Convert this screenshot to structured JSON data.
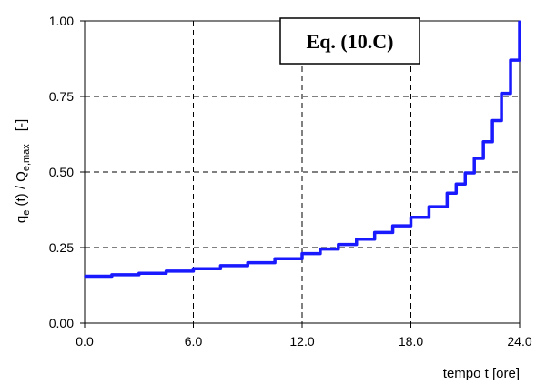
{
  "chart_data": {
    "type": "line",
    "title": "",
    "annotation": "Eq. (10.C)",
    "xlabel": "tempo t [ore]",
    "ylabel": "q",
    "ylabel_parts": {
      "q": "q",
      "q_sub": "e",
      "mid": " (t) / Q",
      "Q_sub": "e,max",
      "unit": "[-]"
    },
    "xlim": [
      0,
      24
    ],
    "ylim": [
      0,
      1
    ],
    "x_ticks": [
      "0.0",
      "6.0",
      "12.0",
      "18.0",
      "24.0"
    ],
    "y_ticks": [
      "0.00",
      "0.25",
      "0.50",
      "0.75",
      "1.00"
    ],
    "x_tick_values": [
      0,
      6,
      12,
      18,
      24
    ],
    "y_tick_values": [
      0,
      0.25,
      0.5,
      0.75,
      1.0
    ],
    "grid": true,
    "series": [
      {
        "color": "#1a1aff",
        "x": [
          0,
          1.5,
          3,
          4.5,
          6,
          7.5,
          9,
          10.5,
          12,
          13,
          14,
          15,
          16,
          17,
          18,
          19,
          20,
          20.5,
          21,
          21.5,
          22,
          22.5,
          23,
          23.5,
          24
        ],
        "y": [
          0.155,
          0.16,
          0.165,
          0.172,
          0.18,
          0.19,
          0.2,
          0.213,
          0.23,
          0.245,
          0.26,
          0.278,
          0.3,
          0.322,
          0.35,
          0.385,
          0.43,
          0.46,
          0.497,
          0.545,
          0.6,
          0.67,
          0.76,
          0.87,
          1.0
        ]
      }
    ]
  }
}
